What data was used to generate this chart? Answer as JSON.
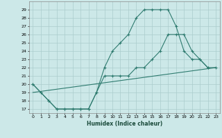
{
  "title": "",
  "xlabel": "Humidex (Indice chaleur)",
  "bg_color": "#cce8e8",
  "grid_color": "#aacccc",
  "line_color": "#2d7a6e",
  "xlim": [
    -0.5,
    23.5
  ],
  "ylim": [
    16.5,
    30.0
  ],
  "yticks": [
    17,
    18,
    19,
    20,
    21,
    22,
    23,
    24,
    25,
    26,
    27,
    28,
    29
  ],
  "xticks": [
    0,
    1,
    2,
    3,
    4,
    5,
    6,
    7,
    8,
    9,
    10,
    11,
    12,
    13,
    14,
    15,
    16,
    17,
    18,
    19,
    20,
    21,
    22,
    23
  ],
  "series": [
    {
      "x": [
        0,
        1,
        2,
        3,
        4,
        5,
        6,
        7,
        8,
        9,
        10,
        11,
        12,
        13,
        14,
        15,
        16,
        17,
        18,
        19,
        20,
        21,
        22
      ],
      "y": [
        20,
        19,
        18,
        17,
        17,
        17,
        17,
        17,
        19,
        22,
        24,
        25,
        26,
        28,
        29,
        29,
        29,
        29,
        27,
        24,
        23,
        23,
        22
      ],
      "marker": true
    },
    {
      "x": [
        0,
        1,
        2,
        3,
        4,
        5,
        6,
        7,
        8,
        9,
        10,
        11,
        12,
        13,
        14,
        15,
        16,
        17,
        18,
        19,
        20,
        21,
        22,
        23
      ],
      "y": [
        20,
        19,
        18,
        17,
        17,
        17,
        17,
        17,
        19,
        21,
        21,
        21,
        21,
        22,
        22,
        23,
        24,
        26,
        26,
        26,
        24,
        23,
        22,
        22
      ],
      "marker": true
    },
    {
      "x": [
        0,
        23
      ],
      "y": [
        19,
        22
      ],
      "marker": false
    }
  ]
}
